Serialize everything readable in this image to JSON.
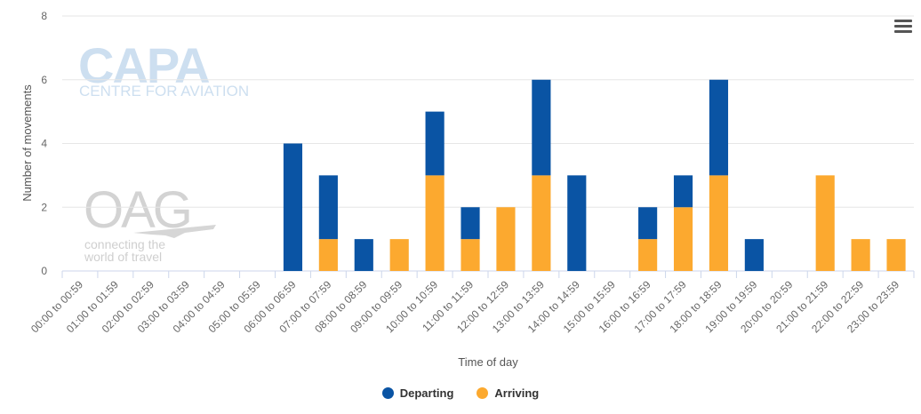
{
  "chart_data": {
    "type": "bar",
    "stacked": true,
    "title": "",
    "xlabel": "Time of day",
    "ylabel": "Number of movements",
    "ylim": [
      0,
      8
    ],
    "yticks": [
      0,
      2,
      4,
      6,
      8
    ],
    "grid": true,
    "legend_position": "bottom-center",
    "categories": [
      "00:00 to 00:59",
      "01:00 to 01:59",
      "02:00 to 02:59",
      "03:00 to 03:59",
      "04:00 to 04:59",
      "05:00 to 05:59",
      "06:00 to 06:59",
      "07:00 to 07:59",
      "08:00 to 08:59",
      "09:00 to 09:59",
      "10:00 to 10:59",
      "11:00 to 11:59",
      "12:00 to 12:59",
      "13:00 to 13:59",
      "14:00 to 14:59",
      "15:00 to 15:59",
      "16:00 to 16:59",
      "17:00 to 17:59",
      "18:00 to 18:59",
      "19:00 to 19:59",
      "20:00 to 20:59",
      "21:00 to 21:59",
      "22:00 to 22:59",
      "23:00 to 23:59"
    ],
    "series": [
      {
        "name": "Departing",
        "color": "#0a54a4",
        "values": [
          0,
          0,
          0,
          0,
          0,
          0,
          4,
          2,
          1,
          0,
          2,
          1,
          0,
          3,
          3,
          0,
          1,
          1,
          3,
          1,
          0,
          0,
          0,
          0
        ]
      },
      {
        "name": "Arriving",
        "color": "#fca92f",
        "values": [
          0,
          0,
          0,
          0,
          0,
          0,
          0,
          1,
          0,
          1,
          3,
          1,
          2,
          3,
          0,
          0,
          1,
          2,
          3,
          0,
          0,
          3,
          1,
          1
        ]
      }
    ]
  },
  "watermarks": {
    "capa_logo": "CAPA",
    "capa_sub": "CENTRE FOR AVIATION",
    "oag_logo": "OAG",
    "oag_tagline_1": "connecting the",
    "oag_tagline_2": "world of travel"
  },
  "menu_icon": "hamburger-menu-icon"
}
